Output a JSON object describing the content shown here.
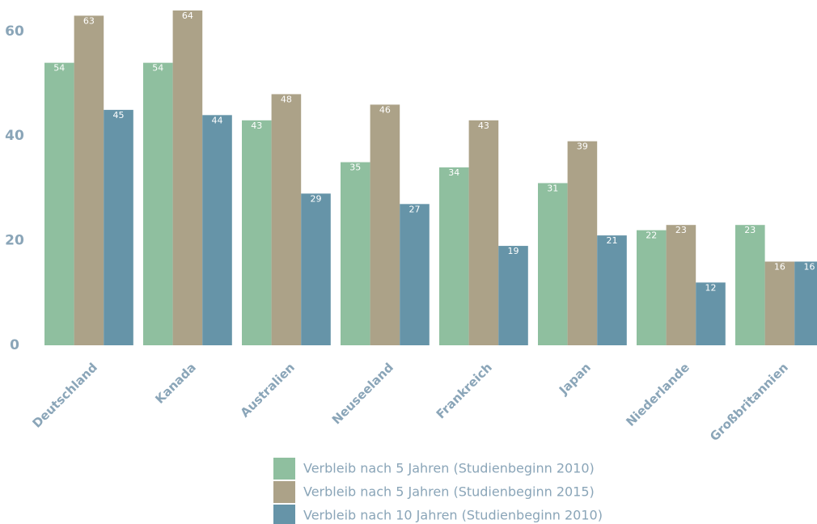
{
  "chart_data": {
    "type": "bar",
    "categories": [
      "Deutschland",
      "Kanada",
      "Australien",
      "Neuseeland",
      "Frankreich",
      "Japan",
      "Niederlande",
      "Großbritannien"
    ],
    "series": [
      {
        "name": "Verbleib nach 5 Jahren (Studienbeginn 2010)",
        "color": "#8fbf9f",
        "values": [
          54,
          54,
          43,
          35,
          34,
          31,
          22,
          23
        ]
      },
      {
        "name": "Verbleib nach 5 Jahren (Studienbeginn 2015)",
        "color": "#aca288",
        "values": [
          63,
          64,
          48,
          46,
          43,
          39,
          23,
          16
        ]
      },
      {
        "name": "Verbleib nach 10 Jahren (Studienbeginn 2010)",
        "color": "#6694a8",
        "values": [
          45,
          44,
          29,
          27,
          19,
          21,
          12,
          16
        ]
      }
    ],
    "ylim": [
      0,
      66
    ],
    "yticks": [
      0,
      20,
      40,
      60
    ],
    "grid": false,
    "legend": "bottom"
  }
}
